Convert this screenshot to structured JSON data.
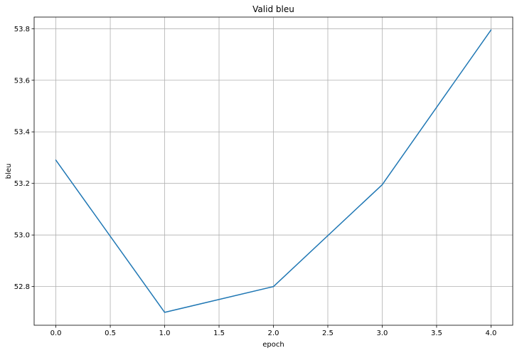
{
  "chart_data": {
    "type": "line",
    "title": "Valid bleu",
    "xlabel": "epoch",
    "ylabel": "bleu",
    "xlim": [
      -0.2,
      4.2
    ],
    "ylim": [
      52.65,
      53.845
    ],
    "xticks": [
      0.0,
      0.5,
      1.0,
      1.5,
      2.0,
      2.5,
      3.0,
      3.5,
      4.0
    ],
    "xtick_labels": [
      "0.0",
      "0.5",
      "1.0",
      "1.5",
      "2.0",
      "2.5",
      "3.0",
      "3.5",
      "4.0"
    ],
    "yticks": [
      52.8,
      53.0,
      53.2,
      53.4,
      53.6,
      53.8
    ],
    "ytick_labels": [
      "52.8",
      "53.0",
      "53.2",
      "53.4",
      "53.6",
      "53.8"
    ],
    "grid": true,
    "legend": false,
    "series": [
      {
        "color": "#1f77b4",
        "x": [
          0,
          1,
          2,
          3,
          4
        ],
        "y": [
          53.29,
          52.7,
          52.8,
          53.195,
          53.795
        ]
      }
    ]
  }
}
